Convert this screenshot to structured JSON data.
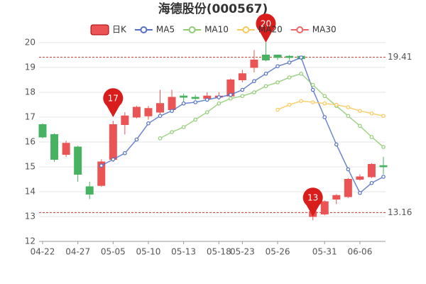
{
  "chart_data": {
    "type": "candlestick",
    "title": "海德股份(000567)",
    "categories": [
      "04-22",
      null,
      null,
      "04-27",
      null,
      null,
      "05-05",
      null,
      null,
      "05-10",
      null,
      null,
      "05-13",
      null,
      null,
      "05-18",
      null,
      "05-23",
      null,
      null,
      "05-26",
      null,
      null,
      null,
      "05-31",
      null,
      null,
      "06-06",
      null,
      null
    ],
    "series": [
      {
        "name": "日K",
        "color_up": "#eb5454",
        "color_down": "#47b262",
        "open": [
          16.7,
          16.3,
          15.5,
          15.8,
          14.2,
          14.25,
          15.3,
          16.7,
          17.0,
          17.05,
          17.2,
          17.3,
          17.85,
          17.8,
          17.75,
          17.8,
          17.85,
          18.5,
          19.0,
          19.5,
          19.5,
          19.45,
          19.45,
          13.0,
          13.1,
          13.7,
          13.8,
          14.5,
          14.6,
          15.05
        ],
        "high": [
          16.75,
          16.35,
          16.05,
          15.85,
          14.4,
          15.3,
          16.85,
          17.2,
          17.45,
          17.45,
          18.1,
          18.1,
          17.95,
          17.9,
          18.0,
          18.0,
          18.55,
          18.9,
          19.7,
          20.0,
          19.5,
          19.5,
          19.45,
          13.4,
          13.65,
          13.9,
          14.55,
          14.7,
          15.15,
          15.4
        ],
        "low": [
          16.15,
          15.2,
          15.4,
          14.4,
          13.7,
          14.2,
          15.2,
          16.3,
          16.95,
          16.9,
          17.0,
          17.2,
          17.6,
          17.7,
          17.7,
          17.7,
          17.8,
          18.4,
          18.8,
          19.25,
          19.3,
          19.3,
          19.3,
          12.85,
          13.05,
          13.5,
          13.75,
          14.45,
          14.55,
          14.7
        ],
        "close": [
          16.2,
          15.3,
          15.95,
          14.7,
          13.9,
          15.2,
          16.7,
          17.05,
          17.4,
          17.35,
          17.55,
          17.8,
          17.8,
          17.75,
          17.85,
          17.85,
          18.5,
          18.75,
          19.3,
          19.3,
          19.4,
          19.4,
          19.35,
          13.2,
          13.6,
          13.85,
          14.5,
          14.6,
          15.1,
          15.0
        ]
      },
      {
        "name": "MA5",
        "color": "#5470c6",
        "values": [
          null,
          null,
          null,
          null,
          null,
          15.05,
          15.3,
          15.55,
          16.1,
          16.75,
          17.05,
          17.25,
          17.55,
          17.6,
          17.7,
          17.8,
          17.9,
          18.1,
          18.45,
          18.75,
          19.05,
          19.2,
          19.4,
          18.1,
          17.0,
          15.9,
          14.9,
          13.95,
          14.35,
          14.6
        ]
      },
      {
        "name": "MA10",
        "color": "#91cc75",
        "values": [
          null,
          null,
          null,
          null,
          null,
          null,
          null,
          null,
          null,
          null,
          16.15,
          16.4,
          16.6,
          16.9,
          17.2,
          17.55,
          17.75,
          17.85,
          18.0,
          18.25,
          18.4,
          18.6,
          18.75,
          18.3,
          17.85,
          17.45,
          17.05,
          16.65,
          16.2,
          15.8
        ]
      },
      {
        "name": "MA20",
        "color": "#fac858",
        "values": [
          null,
          null,
          null,
          null,
          null,
          null,
          null,
          null,
          null,
          null,
          null,
          null,
          null,
          null,
          null,
          null,
          null,
          null,
          null,
          null,
          17.3,
          17.5,
          17.65,
          17.6,
          17.55,
          17.5,
          17.4,
          17.25,
          17.15,
          17.05
        ]
      },
      {
        "name": "MA30",
        "color": "#ee6666",
        "values": [
          null,
          null,
          null,
          null,
          null,
          null,
          null,
          null,
          null,
          null,
          null,
          null,
          null,
          null,
          null,
          null,
          null,
          null,
          null,
          null,
          null,
          null,
          null,
          null,
          null,
          null,
          null,
          null,
          null,
          null
        ]
      }
    ],
    "ylim": [
      12,
      20
    ],
    "yticks": [
      12,
      13,
      14,
      15,
      16,
      17,
      18,
      19,
      20
    ],
    "grid": true,
    "ref_lines": [
      {
        "value": 19.41,
        "color": "#c0392b"
      },
      {
        "value": 13.16,
        "color": "#c0392b"
      }
    ],
    "markers": [
      {
        "value": 20,
        "label": "20",
        "candle": 19,
        "color": "#d91c1c"
      },
      {
        "value": 17,
        "label": "17",
        "candle": 6,
        "color": "#d91c1c"
      },
      {
        "value": 13,
        "label": "13",
        "candle": 23,
        "color": "#d91c1c"
      }
    ]
  }
}
